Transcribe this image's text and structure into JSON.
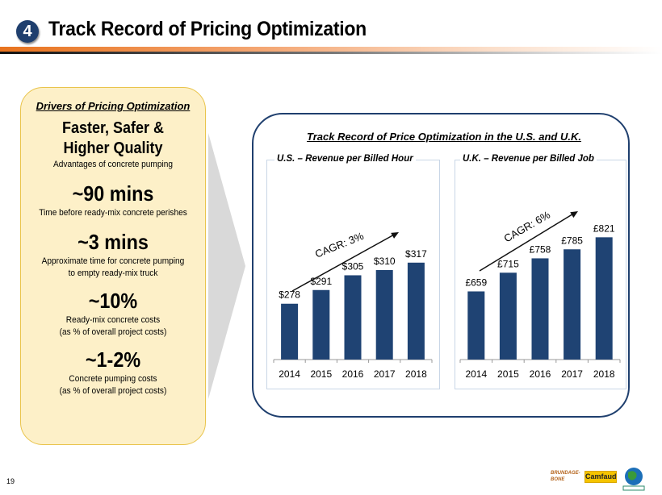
{
  "header": {
    "section_number": "4",
    "title": "Track Record of Pricing Optimization"
  },
  "drivers": {
    "heading": "Drivers of Pricing Optimization",
    "items": [
      {
        "value": "Faster, Safer &",
        "value2": "Higher Quality",
        "desc": "Advantages of concrete pumping"
      },
      {
        "value": "~90 mins",
        "desc": "Time before ready-mix concrete perishes"
      },
      {
        "value": "~3 mins",
        "desc": "Approximate time for concrete pumping",
        "desc2": "to empty ready-mix truck"
      },
      {
        "value": "~10%",
        "desc": "Ready-mix concrete costs",
        "desc2": "(as % of overall project costs)"
      },
      {
        "value": "~1-2%",
        "desc": "Concrete pumping costs",
        "desc2": "(as % of overall project costs)"
      }
    ]
  },
  "panel": {
    "title": "Track Record of Price Optimization in the U.S. and U.K."
  },
  "colors": {
    "bar": "#1f4373",
    "accent": "#1f3f6e",
    "panel_fill": "#fdf0c8",
    "panel_border": "#e9c44c"
  },
  "chart_data": [
    {
      "type": "bar",
      "title": "U.S. – Revenue per Billed Hour",
      "categories": [
        "2014",
        "2015",
        "2016",
        "2017",
        "2018"
      ],
      "values": [
        278,
        291,
        305,
        310,
        317
      ],
      "labels": [
        "$278",
        "$291",
        "$305",
        "$310",
        "$317"
      ],
      "annotation": "CAGR: 3%",
      "ylim": [
        225,
        375
      ],
      "grid": false
    },
    {
      "type": "bar",
      "title": "U.K. – Revenue per Billed Job",
      "categories": [
        "2014",
        "2015",
        "2016",
        "2017",
        "2018"
      ],
      "values": [
        659,
        715,
        758,
        785,
        821
      ],
      "labels": [
        "£659",
        "£715",
        "£758",
        "£785",
        "£821"
      ],
      "annotation": "CAGR: 6%",
      "ylim": [
        455,
        928
      ],
      "grid": false
    }
  ],
  "footer": {
    "page_number": "19",
    "logos": [
      "Brundage-Bone Concrete Pumping",
      "Camfaud",
      "Eco-Pan"
    ]
  }
}
